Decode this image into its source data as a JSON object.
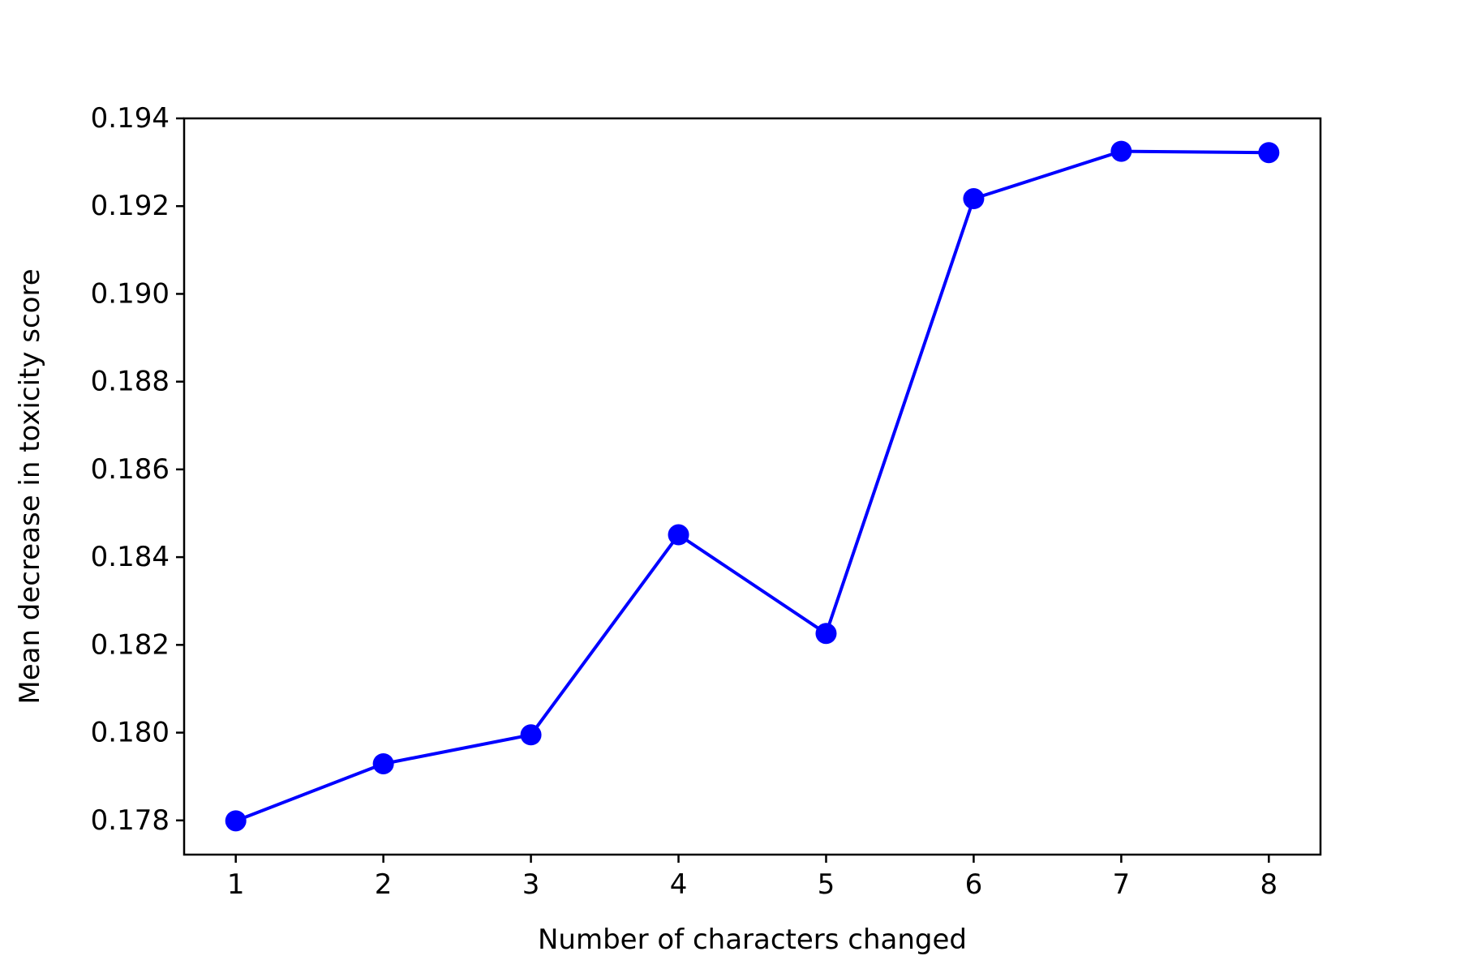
{
  "chart_data": {
    "type": "line",
    "title": "",
    "xlabel": "Number of characters changed",
    "ylabel": "Mean decrease in toxicity score",
    "x": [
      1,
      2,
      3,
      4,
      5,
      6,
      7,
      8
    ],
    "series": [
      {
        "values": [
          0.17799,
          0.17929,
          0.17995,
          0.18451,
          0.18226,
          0.19217,
          0.19325,
          0.19322
        ],
        "color": "#0000ff",
        "marker": "circle"
      }
    ],
    "xlim": [
      0.65,
      8.35
    ],
    "ylim": [
      0.17722,
      0.194
    ],
    "xticks": [
      "1",
      "2",
      "3",
      "4",
      "5",
      "6",
      "7",
      "8"
    ],
    "yticks": [
      "0.178",
      "0.180",
      "0.182",
      "0.184",
      "0.186",
      "0.188",
      "0.190",
      "0.192",
      "0.194"
    ],
    "grid": false,
    "legend": "none"
  }
}
